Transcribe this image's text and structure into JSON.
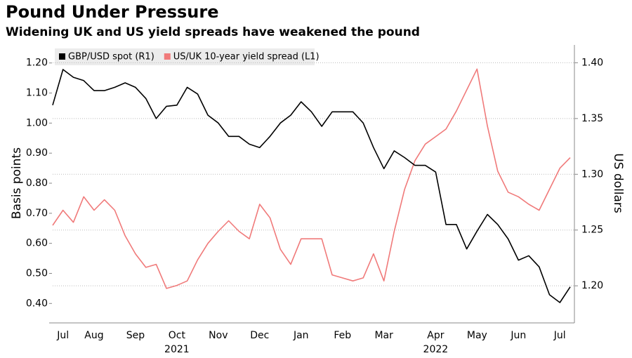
{
  "chart_data": {
    "type": "line",
    "title": "Pound Under Pressure",
    "subtitle": "Widening UK and US yield spreads have weakened the pound",
    "ylabel": "Basis points",
    "y2label": "US dollars",
    "categories": [
      null,
      "Jul",
      null,
      null,
      "Aug",
      null,
      null,
      null,
      "Sep",
      null,
      null,
      null,
      "Oct",
      null,
      null,
      null,
      "Nov",
      null,
      null,
      null,
      "Dec",
      null,
      null,
      null,
      "Jan",
      null,
      null,
      null,
      "Feb",
      null,
      null,
      null,
      "Mar",
      null,
      null,
      null,
      null,
      "Apr",
      null,
      null,
      null,
      "May",
      null,
      null,
      null,
      "Jun",
      null,
      null,
      null,
      "Jul",
      null
    ],
    "years": [
      null,
      null,
      null,
      null,
      null,
      null,
      null,
      null,
      null,
      null,
      null,
      null,
      "2021",
      null,
      null,
      null,
      null,
      null,
      null,
      null,
      null,
      null,
      null,
      null,
      null,
      null,
      null,
      null,
      null,
      null,
      null,
      null,
      null,
      null,
      null,
      null,
      null,
      "2022",
      null,
      null,
      null,
      null,
      null,
      null,
      null,
      null,
      null,
      null,
      null,
      null,
      null
    ],
    "ylim": [
      0.34,
      1.26
    ],
    "yticks": [
      {
        "value": 0.4,
        "label": "0.40"
      },
      {
        "value": 0.5,
        "label": "0.50"
      },
      {
        "value": 0.6,
        "label": "0.60"
      },
      {
        "value": 0.7,
        "label": "0.70"
      },
      {
        "value": 0.8,
        "label": "0.80"
      },
      {
        "value": 0.9,
        "label": "0.90"
      },
      {
        "value": 1.0,
        "label": "1.00"
      },
      {
        "value": 1.1,
        "label": "1.10"
      },
      {
        "value": 1.2,
        "label": "1.20"
      }
    ],
    "y2lim": [
      1.168,
      1.416
    ],
    "y2ticks": [
      {
        "value": 1.2,
        "label": "1.20"
      },
      {
        "value": 1.25,
        "label": "1.25"
      },
      {
        "value": 1.3,
        "label": "1.30"
      },
      {
        "value": 1.35,
        "label": "1.35"
      },
      {
        "value": 1.4,
        "label": "1.40"
      }
    ],
    "grid": true,
    "legend": "top-left",
    "series": [
      {
        "name": "GBP/USD spot (R1)",
        "color": "#000000",
        "axis": "y2",
        "values": [
          1.362,
          1.394,
          1.387,
          1.384,
          1.375,
          1.375,
          1.378,
          1.382,
          1.378,
          1.368,
          1.35,
          1.361,
          1.362,
          1.378,
          1.372,
          1.353,
          1.346,
          1.334,
          1.334,
          1.327,
          1.324,
          1.334,
          1.346,
          1.353,
          1.365,
          1.356,
          1.343,
          1.356,
          1.356,
          1.356,
          1.346,
          1.324,
          1.305,
          1.321,
          1.315,
          1.308,
          1.308,
          1.302,
          1.255,
          1.255,
          1.233,
          1.249,
          1.264,
          1.255,
          1.242,
          1.223,
          1.227,
          1.217,
          1.192,
          1.185,
          1.199
        ]
      },
      {
        "name": "US/UK 10-year yield spread (L1)",
        "color": "#f07a7a",
        "values": [
          0.66,
          0.71,
          0.67,
          0.755,
          0.71,
          0.745,
          0.71,
          0.625,
          0.565,
          0.52,
          0.53,
          0.45,
          0.46,
          0.475,
          0.545,
          0.6,
          0.64,
          0.675,
          0.64,
          0.615,
          0.73,
          0.685,
          0.58,
          0.53,
          0.615,
          0.615,
          0.615,
          0.495,
          0.485,
          0.475,
          0.485,
          0.565,
          0.475,
          0.64,
          0.78,
          0.875,
          0.93,
          0.955,
          0.98,
          1.04,
          1.11,
          1.18,
          0.99,
          0.84,
          0.77,
          0.755,
          0.73,
          0.71,
          0.78,
          0.85,
          0.885
        ]
      }
    ]
  }
}
